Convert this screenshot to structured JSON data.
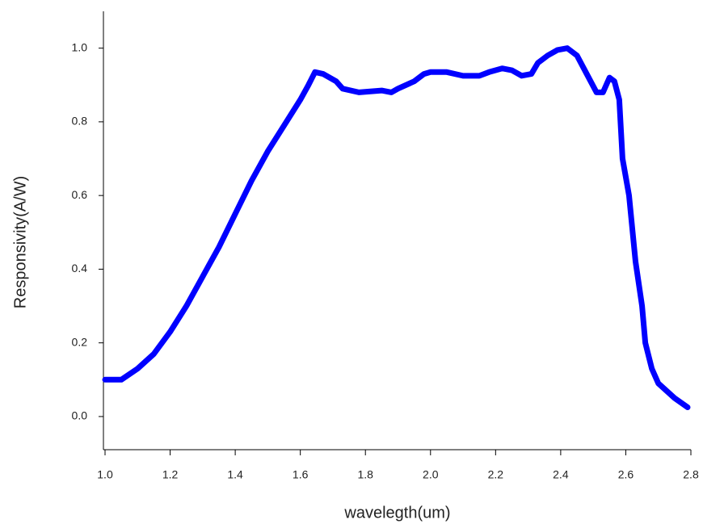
{
  "chart_data": {
    "type": "line",
    "x_label": "wavelegth(um)",
    "y_label": "Responsivity(A/W)",
    "xlim": [
      1.0,
      2.8
    ],
    "ylim": [
      -0.09,
      1.1
    ],
    "xticks": [
      {
        "value": 1.0,
        "label": "1.0"
      },
      1.2,
      1.4,
      1.6,
      1.8,
      {
        "value": 2.0,
        "label": "2.0"
      },
      2.2,
      2.4,
      2.6,
      2.8
    ],
    "yticks": [
      {
        "value": 0.0,
        "label": "0.0"
      },
      0.2,
      0.4,
      0.6,
      0.8,
      {
        "value": 1.0,
        "label": "1.0"
      }
    ],
    "grid": false,
    "series": [
      {
        "color": "#0000ff",
        "x": [
          1.0,
          1.05,
          1.1,
          1.15,
          1.2,
          1.25,
          1.3,
          1.35,
          1.4,
          1.45,
          1.5,
          1.55,
          1.6,
          1.625,
          1.645,
          1.67,
          1.71,
          1.73,
          1.78,
          1.85,
          1.88,
          1.9,
          1.95,
          1.98,
          2.0,
          2.05,
          2.1,
          2.15,
          2.18,
          2.22,
          2.25,
          2.28,
          2.31,
          2.33,
          2.36,
          2.39,
          2.42,
          2.45,
          2.48,
          2.51,
          2.53,
          2.55,
          2.565,
          2.58,
          2.59,
          2.61,
          2.63,
          2.65,
          2.66,
          2.68,
          2.7,
          2.75,
          2.79
        ],
        "values": [
          0.1,
          0.1,
          0.13,
          0.17,
          0.23,
          0.3,
          0.38,
          0.46,
          0.55,
          0.64,
          0.72,
          0.79,
          0.86,
          0.9,
          0.935,
          0.93,
          0.91,
          0.89,
          0.88,
          0.885,
          0.88,
          0.89,
          0.91,
          0.93,
          0.935,
          0.935,
          0.925,
          0.925,
          0.935,
          0.945,
          0.94,
          0.925,
          0.93,
          0.96,
          0.98,
          0.995,
          1.0,
          0.98,
          0.93,
          0.88,
          0.88,
          0.92,
          0.91,
          0.86,
          0.7,
          0.6,
          0.42,
          0.3,
          0.2,
          0.13,
          0.09,
          0.05,
          0.025
        ]
      }
    ]
  }
}
